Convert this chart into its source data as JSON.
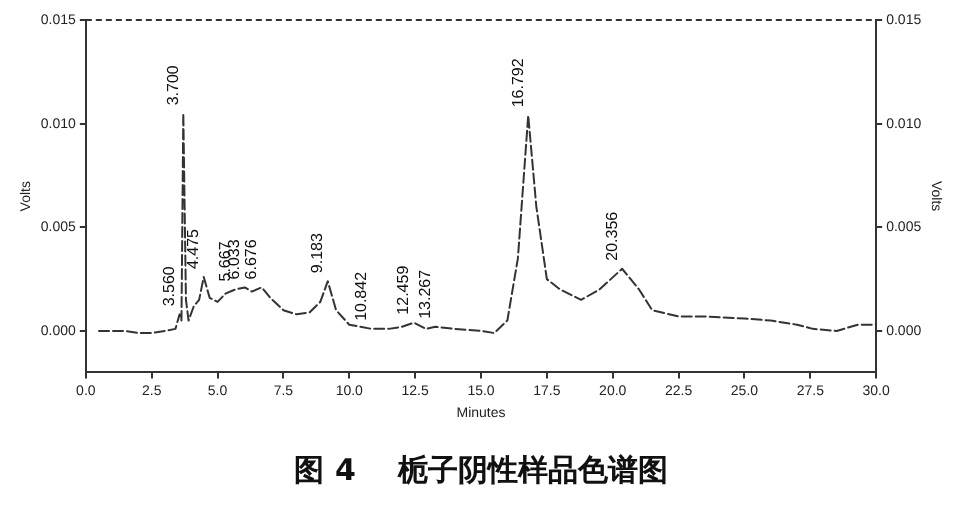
{
  "chart_data": {
    "type": "line",
    "title": "图 4    栀子阴性样品色谱图",
    "xlabel": "Minutes",
    "ylabel": "Volts",
    "y2label": "Volts",
    "series": [
      {
        "color": "#333333",
        "x": [
          0.5,
          1.5,
          2.0,
          2.5,
          3.0,
          3.4,
          3.56,
          3.63,
          3.7,
          3.8,
          3.9,
          4.1,
          4.3,
          4.475,
          4.7,
          5.0,
          5.3,
          5.667,
          6.033,
          6.3,
          6.676,
          7.0,
          7.5,
          8.0,
          8.5,
          8.9,
          9.183,
          9.5,
          10.0,
          10.842,
          11.5,
          12.0,
          12.459,
          12.9,
          13.267,
          14.0,
          15.0,
          15.5,
          16.0,
          16.4,
          16.792,
          17.1,
          17.5,
          18.0,
          18.8,
          19.5,
          20.356,
          21.0,
          21.5,
          22.5,
          23.5,
          25.0,
          26.0,
          27.0,
          27.6,
          28.5,
          29.3,
          30.0
        ],
        "values": [
          0.0,
          0.0,
          -0.0001,
          -0.0001,
          0.0,
          0.0001,
          0.0008,
          0.0005,
          0.0105,
          0.0015,
          0.0005,
          0.0012,
          0.0015,
          0.0026,
          0.0016,
          0.0014,
          0.0018,
          0.002,
          0.0021,
          0.0019,
          0.0021,
          0.0016,
          0.001,
          0.0008,
          0.0009,
          0.0014,
          0.0024,
          0.001,
          0.0003,
          0.0001,
          0.0001,
          0.0002,
          0.0004,
          0.0001,
          0.0002,
          0.0001,
          0.0,
          -0.0001,
          0.0005,
          0.0035,
          0.0104,
          0.006,
          0.0025,
          0.002,
          0.0015,
          0.002,
          0.003,
          0.002,
          0.001,
          0.0007,
          0.0007,
          0.0006,
          0.0005,
          0.0003,
          0.0001,
          0.0,
          0.0003,
          0.0003
        ]
      }
    ],
    "xlim": [
      0,
      30
    ],
    "xticks": [
      {
        "value": 0,
        "label": "0.0"
      },
      {
        "value": 2.5,
        "label": "2.5"
      },
      {
        "value": 5,
        "label": "5.0"
      },
      {
        "value": 7.5,
        "label": "7.5"
      },
      {
        "value": 10,
        "label": "10.0"
      },
      {
        "value": 12.5,
        "label": "12.5"
      },
      {
        "value": 15,
        "label": "15.0"
      },
      {
        "value": 17.5,
        "label": "17.5"
      },
      {
        "value": 20,
        "label": "20.0"
      },
      {
        "value": 22.5,
        "label": "22.5"
      },
      {
        "value": 25,
        "label": "25.0"
      },
      {
        "value": 27.5,
        "label": "27.5"
      },
      {
        "value": 30,
        "label": "30.0"
      }
    ],
    "ylim": [
      -0.002,
      0.015
    ],
    "yticks": [
      {
        "value": 0,
        "label": "0.000"
      },
      {
        "value": 0.005,
        "label": "0.005"
      },
      {
        "value": 0.01,
        "label": "0.010"
      },
      {
        "value": 0.015,
        "label": "0.015"
      }
    ],
    "y2lim": [
      -0.002,
      0.015
    ],
    "y2ticks": [
      {
        "value": 0,
        "label": "0.000"
      },
      {
        "value": 0.005,
        "label": "0.005"
      },
      {
        "value": 0.01,
        "label": "0.010"
      },
      {
        "value": 0.015,
        "label": "0.015"
      }
    ],
    "annotations": [
      {
        "text": "3.560",
        "x": 3.56,
        "y": 0.0008
      },
      {
        "text": "3.700",
        "x": 3.7,
        "y": 0.0105
      },
      {
        "text": "4.475",
        "x": 4.475,
        "y": 0.0026
      },
      {
        "text": "5.667",
        "x": 5.667,
        "y": 0.002
      },
      {
        "text": "6.033",
        "x": 6.033,
        "y": 0.0021
      },
      {
        "text": "6.676",
        "x": 6.676,
        "y": 0.0021
      },
      {
        "text": "9.183",
        "x": 9.183,
        "y": 0.0024
      },
      {
        "text": "10.842",
        "x": 10.842,
        "y": 0.0001
      },
      {
        "text": "12.459",
        "x": 12.459,
        "y": 0.0004
      },
      {
        "text": "13.267",
        "x": 13.267,
        "y": 0.0002
      },
      {
        "text": "16.792",
        "x": 16.792,
        "y": 0.0104
      },
      {
        "text": "20.356",
        "x": 20.356,
        "y": 0.003
      }
    ],
    "grid": false,
    "legend": false,
    "marker": "none",
    "line_style": "dashed"
  }
}
